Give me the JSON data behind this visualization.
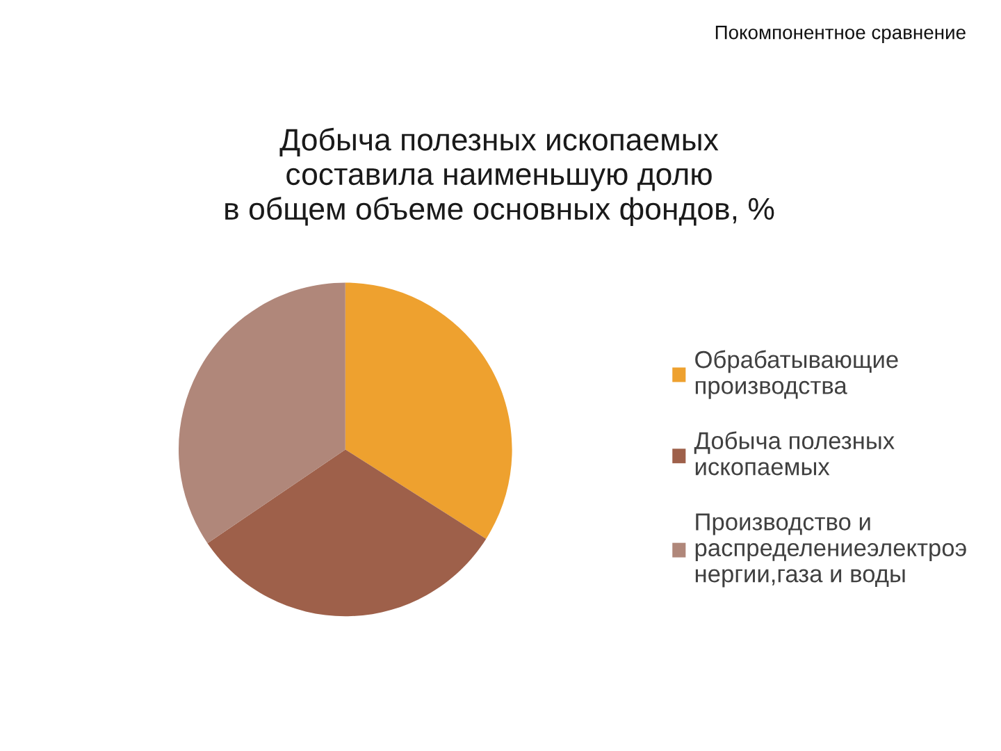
{
  "chart_data": {
    "type": "pie",
    "title": "Добыча полезных ископаемых\nсоставила наименьшую долю\nв общем объеме основных фондов, %",
    "categories": [
      "Обрабатывающие\nпроизводства",
      "Добыча полезных\nископаемых",
      "Производство и\nраспределениеэлектроэ\nнергии,газа и воды"
    ],
    "values": [
      34,
      31.5,
      34.5
    ],
    "colors": [
      "#eea12f",
      "#9e604a",
      "#b0877a"
    ],
    "legend": "right",
    "annotations": [
      "Покомпонентное сравнение"
    ]
  }
}
